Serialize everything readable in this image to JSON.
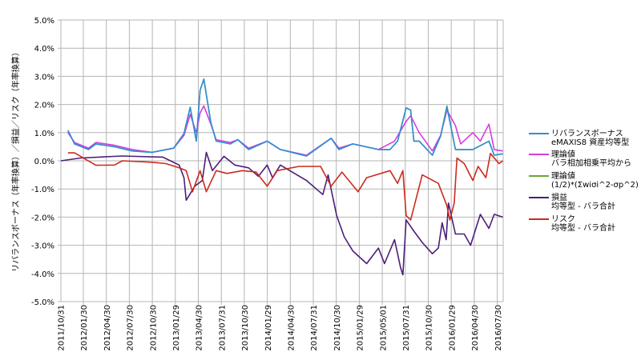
{
  "chart_data": {
    "type": "line",
    "title": "",
    "ylabel": "リバランスボーナス（年率換算）／損益／リスク（年率換算）",
    "xlabel": "",
    "ylim": [
      -5,
      5
    ],
    "y_ticks": [
      "5.0%",
      "4.0%",
      "3.0%",
      "2.0%",
      "1.0%",
      "0.0%",
      "-1.0%",
      "-2.0%",
      "-3.0%",
      "-4.0%",
      "-5.0%"
    ],
    "x_ticks": [
      "2011/10/31",
      "2012/01/30",
      "2012/04/30",
      "2012/07/30",
      "2012/10/30",
      "2013/01/29",
      "2013/04/30",
      "2013/07/31",
      "2013/10/30",
      "2014/01/29",
      "2014/04/30",
      "2014/07/31",
      "2014/10/30",
      "2015/01/29",
      "2015/05/01",
      "2015/07/31",
      "2015/10/30",
      "2016/01/29",
      "2016/04/30",
      "2016/07/30"
    ],
    "grid": true,
    "legend_position": "right",
    "series": [
      {
        "name": "理論値\n(1/2)*(Σwiσi^2-σp^2)",
        "color": "#6aa53c",
        "points": [
          [
            "2011/11/28",
            1.08
          ],
          [
            "2011/12/24",
            0.6
          ],
          [
            "2012/02/18",
            0.4
          ],
          [
            "2012/03/18",
            0.6
          ],
          [
            "2012/05/31",
            0.5
          ],
          [
            "2012/08/09",
            0.35
          ],
          [
            "2012/10/28",
            0.3
          ],
          [
            "2013/01/21",
            0.45
          ],
          [
            "2013/03/03",
            0.97
          ],
          [
            "2013/03/28",
            1.9
          ],
          [
            "2013/04/21",
            0.7
          ],
          [
            "2013/05/06",
            2.5
          ],
          [
            "2013/05/21",
            2.9
          ],
          [
            "2013/06/18",
            1.35
          ],
          [
            "2013/07/09",
            0.7
          ],
          [
            "2013/09/03",
            0.6
          ],
          [
            "2013/10/03",
            0.75
          ],
          [
            "2013/11/15",
            0.4
          ],
          [
            "2014/01/28",
            0.7
          ],
          [
            "2014/03/21",
            0.4
          ],
          [
            "2014/07/03",
            0.17
          ],
          [
            "2014/10/09",
            0.8
          ],
          [
            "2014/11/09",
            0.4
          ],
          [
            "2015/01/03",
            0.6
          ],
          [
            "2015/04/15",
            0.4
          ],
          [
            "2015/05/31",
            0.4
          ],
          [
            "2015/06/30",
            0.7
          ],
          [
            "2015/08/03",
            1.88
          ],
          [
            "2015/08/21",
            1.8
          ],
          [
            "2015/09/03",
            0.7
          ],
          [
            "2015/09/24",
            0.7
          ],
          [
            "2015/11/15",
            0.2
          ],
          [
            "2015/12/18",
            0.88
          ],
          [
            "2016/01/12",
            1.95
          ],
          [
            "2016/02/15",
            0.4
          ],
          [
            "2016/04/24",
            0.4
          ],
          [
            "2016/06/27",
            0.7
          ],
          [
            "2016/07/18",
            0.2
          ],
          [
            "2016/08/21",
            0.25
          ]
        ]
      },
      {
        "name": "理論値\nバラ相加相乗平均から",
        "color": "#d63ce0",
        "points": [
          [
            "2011/11/28",
            1.0
          ],
          [
            "2011/12/24",
            0.65
          ],
          [
            "2012/02/18",
            0.45
          ],
          [
            "2012/03/18",
            0.65
          ],
          [
            "2012/05/31",
            0.55
          ],
          [
            "2012/08/09",
            0.4
          ],
          [
            "2012/10/28",
            0.3
          ],
          [
            "2013/01/21",
            0.45
          ],
          [
            "2013/03/03",
            0.9
          ],
          [
            "2013/03/28",
            1.65
          ],
          [
            "2013/04/21",
            1.0
          ],
          [
            "2013/05/06",
            1.7
          ],
          [
            "2013/05/21",
            1.95
          ],
          [
            "2013/06/18",
            1.3
          ],
          [
            "2013/07/09",
            0.75
          ],
          [
            "2013/09/03",
            0.65
          ],
          [
            "2013/10/03",
            0.75
          ],
          [
            "2013/11/15",
            0.45
          ],
          [
            "2014/01/28",
            0.7
          ],
          [
            "2014/03/21",
            0.4
          ],
          [
            "2014/07/03",
            0.2
          ],
          [
            "2014/10/09",
            0.8
          ],
          [
            "2014/11/09",
            0.45
          ],
          [
            "2015/01/03",
            0.6
          ],
          [
            "2015/04/15",
            0.4
          ],
          [
            "2015/06/18",
            0.7
          ],
          [
            "2015/08/03",
            1.4
          ],
          [
            "2015/08/21",
            1.6
          ],
          [
            "2015/09/24",
            1.0
          ],
          [
            "2015/11/15",
            0.35
          ],
          [
            "2015/12/18",
            0.9
          ],
          [
            "2016/01/12",
            1.8
          ],
          [
            "2016/02/15",
            1.25
          ],
          [
            "2016/03/07",
            0.6
          ],
          [
            "2016/04/24",
            1.0
          ],
          [
            "2016/05/24",
            0.7
          ],
          [
            "2016/06/27",
            1.3
          ],
          [
            "2016/07/18",
            0.4
          ],
          [
            "2016/08/21",
            0.35
          ]
        ]
      },
      {
        "name": "リバランスボーナス\neMAXIS8 資産均等型",
        "color": "#2e8fd6",
        "points": [
          [
            "2011/11/28",
            1.08
          ],
          [
            "2011/12/24",
            0.6
          ],
          [
            "2012/02/18",
            0.4
          ],
          [
            "2012/03/18",
            0.6
          ],
          [
            "2012/05/31",
            0.5
          ],
          [
            "2012/08/09",
            0.35
          ],
          [
            "2012/10/28",
            0.3
          ],
          [
            "2013/01/21",
            0.45
          ],
          [
            "2013/03/03",
            0.97
          ],
          [
            "2013/03/28",
            1.9
          ],
          [
            "2013/04/21",
            0.7
          ],
          [
            "2013/05/06",
            2.5
          ],
          [
            "2013/05/21",
            2.9
          ],
          [
            "2013/06/18",
            1.35
          ],
          [
            "2013/07/09",
            0.7
          ],
          [
            "2013/09/03",
            0.6
          ],
          [
            "2013/10/03",
            0.75
          ],
          [
            "2013/11/15",
            0.4
          ],
          [
            "2014/01/28",
            0.7
          ],
          [
            "2014/03/21",
            0.4
          ],
          [
            "2014/07/03",
            0.17
          ],
          [
            "2014/10/09",
            0.8
          ],
          [
            "2014/11/09",
            0.4
          ],
          [
            "2015/01/03",
            0.6
          ],
          [
            "2015/04/15",
            0.4
          ],
          [
            "2015/05/31",
            0.4
          ],
          [
            "2015/06/30",
            0.7
          ],
          [
            "2015/08/03",
            1.88
          ],
          [
            "2015/08/21",
            1.8
          ],
          [
            "2015/09/03",
            0.7
          ],
          [
            "2015/09/24",
            0.7
          ],
          [
            "2015/11/15",
            0.2
          ],
          [
            "2015/12/18",
            0.88
          ],
          [
            "2016/01/12",
            1.9
          ],
          [
            "2016/02/15",
            0.4
          ],
          [
            "2016/04/24",
            0.4
          ],
          [
            "2016/06/27",
            0.7
          ],
          [
            "2016/07/18",
            0.2
          ],
          [
            "2016/08/21",
            0.25
          ]
        ]
      },
      {
        "name": "損益\n均等型 - バラ合計",
        "color": "#4b1f7a",
        "points": [
          [
            "2011/10/31",
            0.0
          ],
          [
            "2012/01/18",
            0.1
          ],
          [
            "2012/07/01",
            0.17
          ],
          [
            "2012/12/09",
            0.13
          ],
          [
            "2013/02/12",
            -0.15
          ],
          [
            "2013/03/03",
            -0.6
          ],
          [
            "2013/03/12",
            -1.4
          ],
          [
            "2013/04/15",
            -0.9
          ],
          [
            "2013/05/15",
            -0.7
          ],
          [
            "2013/05/31",
            0.3
          ],
          [
            "2013/06/24",
            -0.35
          ],
          [
            "2013/08/09",
            0.16
          ],
          [
            "2013/09/21",
            -0.15
          ],
          [
            "2013/11/15",
            -0.25
          ],
          [
            "2013/12/24",
            -0.55
          ],
          [
            "2014/01/28",
            -0.15
          ],
          [
            "2014/02/18",
            -0.6
          ],
          [
            "2014/03/21",
            -0.15
          ],
          [
            "2014/07/03",
            -0.7
          ],
          [
            "2014/09/06",
            -1.2
          ],
          [
            "2014/09/27",
            -0.5
          ],
          [
            "2014/10/31",
            -1.95
          ],
          [
            "2014/11/30",
            -2.7
          ],
          [
            "2015/01/03",
            -3.2
          ],
          [
            "2015/02/27",
            -3.65
          ],
          [
            "2015/04/15",
            -3.1
          ],
          [
            "2015/05/09",
            -3.65
          ],
          [
            "2015/06/18",
            -2.8
          ],
          [
            "2015/07/12",
            -3.8
          ],
          [
            "2015/07/21",
            -4.05
          ],
          [
            "2015/08/03",
            -2.1
          ],
          [
            "2015/09/03",
            -2.5
          ],
          [
            "2015/10/06",
            -2.9
          ],
          [
            "2015/11/15",
            -3.3
          ],
          [
            "2015/12/09",
            -3.1
          ],
          [
            "2015/12/24",
            -2.2
          ],
          [
            "2016/01/09",
            -2.8
          ],
          [
            "2016/01/18",
            -1.5
          ],
          [
            "2016/02/15",
            -2.6
          ],
          [
            "2016/03/21",
            -2.6
          ],
          [
            "2016/04/15",
            -3.0
          ],
          [
            "2016/05/24",
            -1.9
          ],
          [
            "2016/06/27",
            -2.4
          ],
          [
            "2016/07/18",
            -1.9
          ],
          [
            "2016/08/21",
            -2.0
          ]
        ]
      },
      {
        "name": "リスク\n均等型 - バラ合計",
        "color": "#cc2a1e",
        "points": [
          [
            "2011/11/28",
            0.28
          ],
          [
            "2011/12/24",
            0.28
          ],
          [
            "2012/03/18",
            -0.16
          ],
          [
            "2012/05/31",
            -0.15
          ],
          [
            "2012/07/01",
            0.0
          ],
          [
            "2012/10/28",
            -0.05
          ],
          [
            "2012/12/21",
            -0.1
          ],
          [
            "2013/02/12",
            -0.25
          ],
          [
            "2013/03/12",
            -0.35
          ],
          [
            "2013/04/06",
            -1.1
          ],
          [
            "2013/05/06",
            -0.35
          ],
          [
            "2013/05/31",
            -1.1
          ],
          [
            "2013/07/09",
            -0.35
          ],
          [
            "2013/08/21",
            -0.45
          ],
          [
            "2013/10/21",
            -0.35
          ],
          [
            "2013/12/15",
            -0.4
          ],
          [
            "2014/01/28",
            -0.9
          ],
          [
            "2014/03/09",
            -0.35
          ],
          [
            "2014/06/03",
            -0.2
          ],
          [
            "2014/08/28",
            -0.2
          ],
          [
            "2014/10/09",
            -0.9
          ],
          [
            "2014/11/21",
            -0.4
          ],
          [
            "2015/01/24",
            -1.1
          ],
          [
            "2015/02/27",
            -0.6
          ],
          [
            "2015/05/31",
            -0.35
          ],
          [
            "2015/06/30",
            -0.8
          ],
          [
            "2015/07/21",
            -0.35
          ],
          [
            "2015/08/03",
            -1.95
          ],
          [
            "2015/08/21",
            -2.1
          ],
          [
            "2015/10/06",
            -0.5
          ],
          [
            "2015/12/09",
            -0.8
          ],
          [
            "2016/01/12",
            -1.6
          ],
          [
            "2016/01/24",
            -2.1
          ],
          [
            "2016/02/10",
            -1.5
          ],
          [
            "2016/02/21",
            0.1
          ],
          [
            "2016/03/21",
            -0.1
          ],
          [
            "2016/04/24",
            -0.7
          ],
          [
            "2016/05/15",
            -0.2
          ],
          [
            "2016/06/15",
            -0.6
          ],
          [
            "2016/07/03",
            0.26
          ],
          [
            "2016/08/06",
            -0.1
          ],
          [
            "2016/08/21",
            0.0
          ]
        ]
      }
    ],
    "legend_order": [
      2,
      1,
      0,
      3,
      4
    ]
  }
}
